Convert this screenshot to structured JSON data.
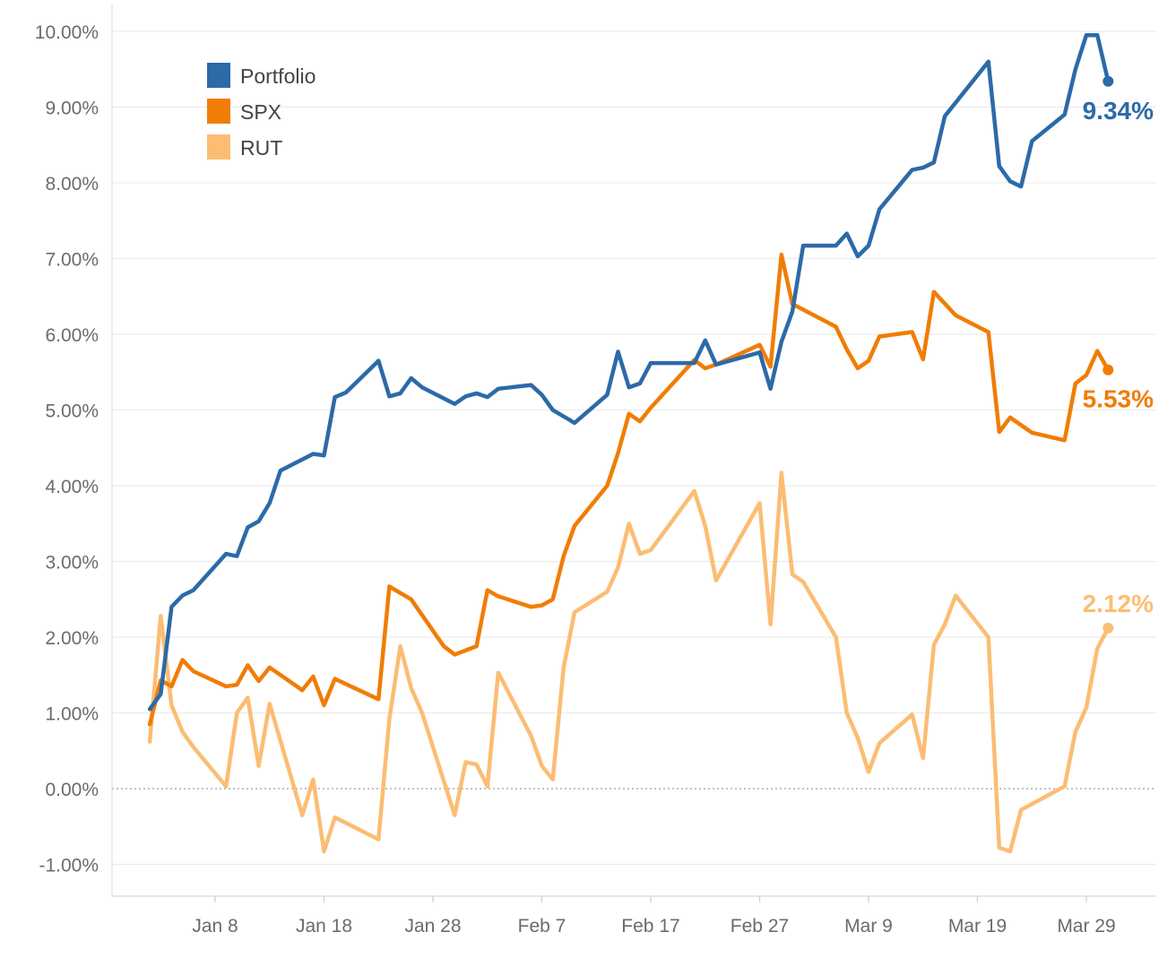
{
  "chart_data": {
    "type": "line",
    "title": "",
    "xlabel": "",
    "ylabel": "",
    "ylim": [
      -1.0,
      10.0
    ],
    "y_ticks": [
      -1,
      0,
      1,
      2,
      3,
      4,
      5,
      6,
      7,
      8,
      9,
      10
    ],
    "y_tick_labels": [
      "-1.00%",
      "0.00%",
      "1.00%",
      "2.00%",
      "3.00%",
      "4.00%",
      "5.00%",
      "6.00%",
      "7.00%",
      "8.00%",
      "9.00%",
      "10.00%"
    ],
    "x_ticks": [
      "2019-01-08",
      "2019-01-18",
      "2019-01-28",
      "2019-02-07",
      "2019-02-17",
      "2019-02-27",
      "2019-03-09",
      "2019-03-19",
      "2019-03-29"
    ],
    "x_tick_labels": [
      "Jan 8",
      "Jan 18",
      "Jan 28",
      "Feb 7",
      "Feb 17",
      "Feb 27",
      "Mar 9",
      "Mar 19",
      "Mar 29"
    ],
    "xlim": [
      "2018-12-31",
      "2019-04-03"
    ],
    "grid": "horizontal",
    "zero_line": "dotted",
    "legend": "top-left",
    "series": [
      {
        "name": "Portfolio",
        "color": "#2c6aa8",
        "end_label": "9.34%",
        "x": [
          "2019-01-02",
          "2019-01-03",
          "2019-01-04",
          "2019-01-05",
          "2019-01-06",
          "2019-01-09",
          "2019-01-10",
          "2019-01-11",
          "2019-01-12",
          "2019-01-13",
          "2019-01-14",
          "2019-01-17",
          "2019-01-18",
          "2019-01-19",
          "2019-01-20",
          "2019-01-23",
          "2019-01-24",
          "2019-01-25",
          "2019-01-26",
          "2019-01-27",
          "2019-01-30",
          "2019-01-31",
          "2019-02-01",
          "2019-02-02",
          "2019-02-03",
          "2019-02-06",
          "2019-02-07",
          "2019-02-08",
          "2019-02-10",
          "2019-02-13",
          "2019-02-14",
          "2019-02-15",
          "2019-02-16",
          "2019-02-17",
          "2019-02-21",
          "2019-02-22",
          "2019-02-23",
          "2019-02-27",
          "2019-02-28",
          "2019-03-01",
          "2019-03-02",
          "2019-03-03",
          "2019-03-06",
          "2019-03-07",
          "2019-03-08",
          "2019-03-09",
          "2019-03-10",
          "2019-03-13",
          "2019-03-14",
          "2019-03-15",
          "2019-03-16",
          "2019-03-20",
          "2019-03-21",
          "2019-03-22",
          "2019-03-23",
          "2019-03-24",
          "2019-03-27",
          "2019-03-28",
          "2019-03-29",
          "2019-03-30",
          "2019-03-31"
        ],
        "values": [
          1.05,
          1.25,
          2.4,
          2.55,
          2.62,
          3.1,
          3.07,
          3.45,
          3.53,
          3.77,
          4.2,
          4.42,
          4.4,
          5.17,
          5.23,
          5.65,
          5.18,
          5.22,
          5.42,
          5.3,
          5.08,
          5.18,
          5.22,
          5.17,
          5.28,
          5.33,
          5.2,
          5.0,
          4.83,
          5.2,
          5.77,
          5.3,
          5.35,
          5.62,
          5.62,
          5.92,
          5.6,
          5.76,
          5.28,
          5.9,
          6.3,
          7.17,
          7.17,
          7.33,
          7.03,
          7.17,
          7.65,
          8.17,
          8.2,
          8.27,
          8.88,
          9.6,
          8.22,
          8.02,
          7.95,
          8.55,
          8.9,
          9.5,
          9.95,
          9.95,
          9.34
        ]
      },
      {
        "name": "SPX",
        "color": "#f07d05",
        "end_label": "5.53%",
        "x": [
          "2019-01-02",
          "2019-01-03",
          "2019-01-04",
          "2019-01-05",
          "2019-01-06",
          "2019-01-09",
          "2019-01-10",
          "2019-01-11",
          "2019-01-12",
          "2019-01-13",
          "2019-01-16",
          "2019-01-17",
          "2019-01-18",
          "2019-01-19",
          "2019-01-23",
          "2019-01-24",
          "2019-01-26",
          "2019-01-29",
          "2019-01-30",
          "2019-02-01",
          "2019-02-02",
          "2019-02-03",
          "2019-02-06",
          "2019-02-07",
          "2019-02-08",
          "2019-02-09",
          "2019-02-10",
          "2019-02-13",
          "2019-02-14",
          "2019-02-15",
          "2019-02-16",
          "2019-02-17",
          "2019-02-21",
          "2019-02-22",
          "2019-02-23",
          "2019-02-27",
          "2019-02-28",
          "2019-03-01",
          "2019-03-02",
          "2019-03-06",
          "2019-03-07",
          "2019-03-08",
          "2019-03-09",
          "2019-03-10",
          "2019-03-13",
          "2019-03-14",
          "2019-03-15",
          "2019-03-17",
          "2019-03-20",
          "2019-03-21",
          "2019-03-22",
          "2019-03-24",
          "2019-03-27",
          "2019-03-28",
          "2019-03-29",
          "2019-03-30",
          "2019-03-31"
        ],
        "values": [
          0.85,
          1.43,
          1.35,
          1.7,
          1.55,
          1.35,
          1.37,
          1.63,
          1.42,
          1.6,
          1.3,
          1.48,
          1.1,
          1.45,
          1.18,
          2.67,
          2.5,
          1.88,
          1.77,
          1.88,
          2.62,
          2.54,
          2.4,
          2.42,
          2.5,
          3.07,
          3.47,
          4.0,
          4.43,
          4.95,
          4.85,
          5.03,
          5.66,
          5.55,
          5.6,
          5.86,
          5.57,
          7.05,
          6.4,
          6.1,
          5.8,
          5.55,
          5.65,
          5.97,
          6.03,
          5.67,
          6.56,
          6.25,
          6.03,
          4.71,
          4.9,
          4.7,
          4.6,
          5.35,
          5.46,
          5.78,
          5.53
        ]
      },
      {
        "name": "RUT",
        "color": "#fbbd73",
        "end_label": "2.12%",
        "x": [
          "2019-01-02",
          "2019-01-03",
          "2019-01-04",
          "2019-01-05",
          "2019-01-06",
          "2019-01-09",
          "2019-01-10",
          "2019-01-11",
          "2019-01-12",
          "2019-01-13",
          "2019-01-16",
          "2019-01-17",
          "2019-01-18",
          "2019-01-19",
          "2019-01-23",
          "2019-01-24",
          "2019-01-25",
          "2019-01-26",
          "2019-01-27",
          "2019-01-30",
          "2019-01-31",
          "2019-02-01",
          "2019-02-02",
          "2019-02-03",
          "2019-02-06",
          "2019-02-07",
          "2019-02-08",
          "2019-02-09",
          "2019-02-10",
          "2019-02-13",
          "2019-02-14",
          "2019-02-15",
          "2019-02-16",
          "2019-02-17",
          "2019-02-21",
          "2019-02-22",
          "2019-02-23",
          "2019-02-27",
          "2019-02-28",
          "2019-03-01",
          "2019-03-02",
          "2019-03-03",
          "2019-03-06",
          "2019-03-07",
          "2019-03-08",
          "2019-03-09",
          "2019-03-10",
          "2019-03-13",
          "2019-03-14",
          "2019-03-15",
          "2019-03-16",
          "2019-03-17",
          "2019-03-20",
          "2019-03-21",
          "2019-03-22",
          "2019-03-23",
          "2019-03-27",
          "2019-03-28",
          "2019-03-29",
          "2019-03-30",
          "2019-03-31"
        ],
        "values": [
          0.62,
          2.28,
          1.1,
          0.75,
          0.55,
          0.03,
          1.0,
          1.2,
          0.3,
          1.12,
          -0.35,
          0.12,
          -0.83,
          -0.38,
          -0.67,
          0.92,
          1.88,
          1.33,
          1.0,
          -0.35,
          0.35,
          0.32,
          0.03,
          1.53,
          0.7,
          0.3,
          0.12,
          1.6,
          2.33,
          2.6,
          2.92,
          3.5,
          3.1,
          3.15,
          3.93,
          3.47,
          2.75,
          3.77,
          2.17,
          4.17,
          2.83,
          2.73,
          2.0,
          1.0,
          0.67,
          0.22,
          0.6,
          0.98,
          0.4,
          1.9,
          2.17,
          2.55,
          2.0,
          -0.78,
          -0.83,
          -0.28,
          0.03,
          0.75,
          1.07,
          1.85,
          2.12
        ]
      }
    ]
  }
}
